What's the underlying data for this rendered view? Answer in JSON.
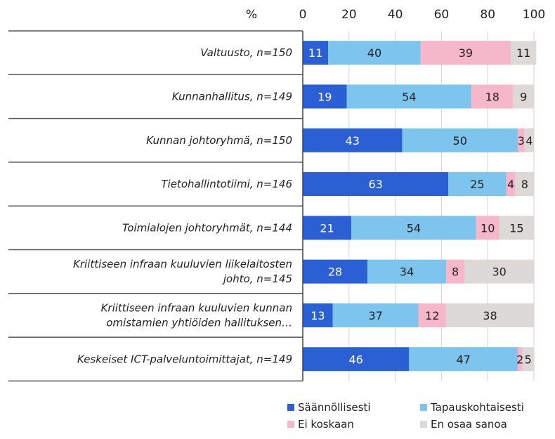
{
  "chart_data": {
    "type": "bar",
    "orientation": "horizontal",
    "stacked": true,
    "x_unit_label": "%",
    "xlim": [
      0,
      100
    ],
    "x_ticks": [
      "0",
      "20",
      "40",
      "60",
      "80",
      "100"
    ],
    "grid": true,
    "legend_position": "bottom-right",
    "categories": [
      [
        "Valtuusto, n=150"
      ],
      [
        "Kunnanhallitus, n=149"
      ],
      [
        "Kunnan johtoryhmä, n=150"
      ],
      [
        "Tietohallintotiimi, n=146"
      ],
      [
        "Toimialojen johtoryhmät, n=144"
      ],
      [
        "Kriittiseen infraan kuuluvien liikelaitosten",
        "johto, n=145"
      ],
      [
        "Kriittiseen infraan kuuluvien kunnan",
        "omistamien yhtiöiden hallituksen…"
      ],
      [
        "Keskeiset ICT-palveluntoimittajat, n=149"
      ]
    ],
    "series": [
      {
        "name": "Säännöllisesti",
        "color": "#2b5fd4",
        "label_color": "#ffffff",
        "values": [
          11,
          19,
          43,
          63,
          21,
          28,
          13,
          46
        ]
      },
      {
        "name": "Tapauskohtaisesti",
        "color": "#7dc4ee",
        "label_color": "#222222",
        "values": [
          40,
          54,
          50,
          25,
          54,
          34,
          37,
          47
        ]
      },
      {
        "name": "Ei koskaan",
        "color": "#f7b7cb",
        "label_color": "#222222",
        "values": [
          39,
          18,
          3,
          4,
          10,
          8,
          12,
          2
        ]
      },
      {
        "name": "En osaa sanoa",
        "color": "#ddd9d6",
        "label_color": "#222222",
        "values": [
          11,
          9,
          4,
          8,
          15,
          30,
          38,
          5
        ]
      }
    ]
  }
}
